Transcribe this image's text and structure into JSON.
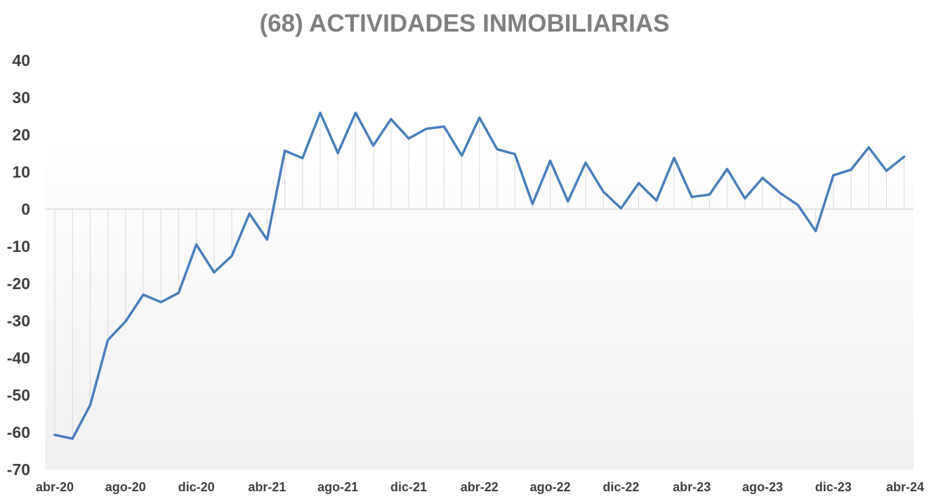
{
  "chart_data": {
    "type": "line",
    "title": "(68) ACTIVIDADES INMOBILIARIAS",
    "xlabel": "",
    "ylabel": "",
    "ylim": [
      -70,
      40
    ],
    "y_ticks": [
      40,
      30,
      20,
      10,
      0,
      -10,
      -20,
      -30,
      -40,
      -50,
      -60,
      -70
    ],
    "x_tick_labels": [
      "abr-20",
      "ago-20",
      "dic-20",
      "abr-21",
      "ago-21",
      "dic-21",
      "abr-22",
      "ago-22",
      "dic-22",
      "abr-23",
      "ago-23",
      "dic-23",
      "abr-24"
    ],
    "grid": false,
    "drop_lines": true,
    "colors": {
      "line": "#4a7ebb",
      "title": "#7f7f7f",
      "axis_text": "#404040",
      "drop_line": "#d9d9d9",
      "zero_line": "#d9d9d9"
    },
    "x": [
      "abr-20",
      "may-20",
      "jun-20",
      "jul-20",
      "ago-20",
      "sep-20",
      "oct-20",
      "nov-20",
      "dic-20",
      "ene-21",
      "feb-21",
      "mar-21",
      "abr-21",
      "may-21",
      "jun-21",
      "jul-21",
      "ago-21",
      "sep-21",
      "oct-21",
      "nov-21",
      "dic-21",
      "ene-22",
      "feb-22",
      "mar-22",
      "abr-22",
      "may-22",
      "jun-22",
      "jul-22",
      "ago-22",
      "sep-22",
      "oct-22",
      "nov-22",
      "dic-22",
      "ene-23",
      "feb-23",
      "mar-23",
      "abr-23",
      "may-23",
      "jun-23",
      "jul-23",
      "ago-23",
      "sep-23",
      "oct-23",
      "nov-23",
      "dic-23",
      "ene-24",
      "feb-24",
      "mar-24",
      "abr-24"
    ],
    "series": [
      {
        "values": [
          -60.7,
          -61.7,
          -52.7,
          -35.2,
          -30.2,
          -23.0,
          -25.0,
          -22.5,
          -9.5,
          -17.0,
          -12.6,
          -1.2,
          -8.2,
          15.7,
          13.7,
          25.9,
          15.1,
          25.9,
          17.1,
          24.2,
          19.0,
          21.6,
          22.2,
          14.4,
          24.6,
          16.1,
          14.8,
          1.4,
          13.0,
          2.1,
          12.5,
          4.7,
          0.2,
          7.0,
          2.3,
          13.8,
          3.3,
          3.9,
          10.8,
          2.9,
          8.4,
          4.3,
          1.1,
          -5.9,
          9.1,
          10.6,
          16.6,
          10.3,
          14.1
        ]
      }
    ]
  }
}
